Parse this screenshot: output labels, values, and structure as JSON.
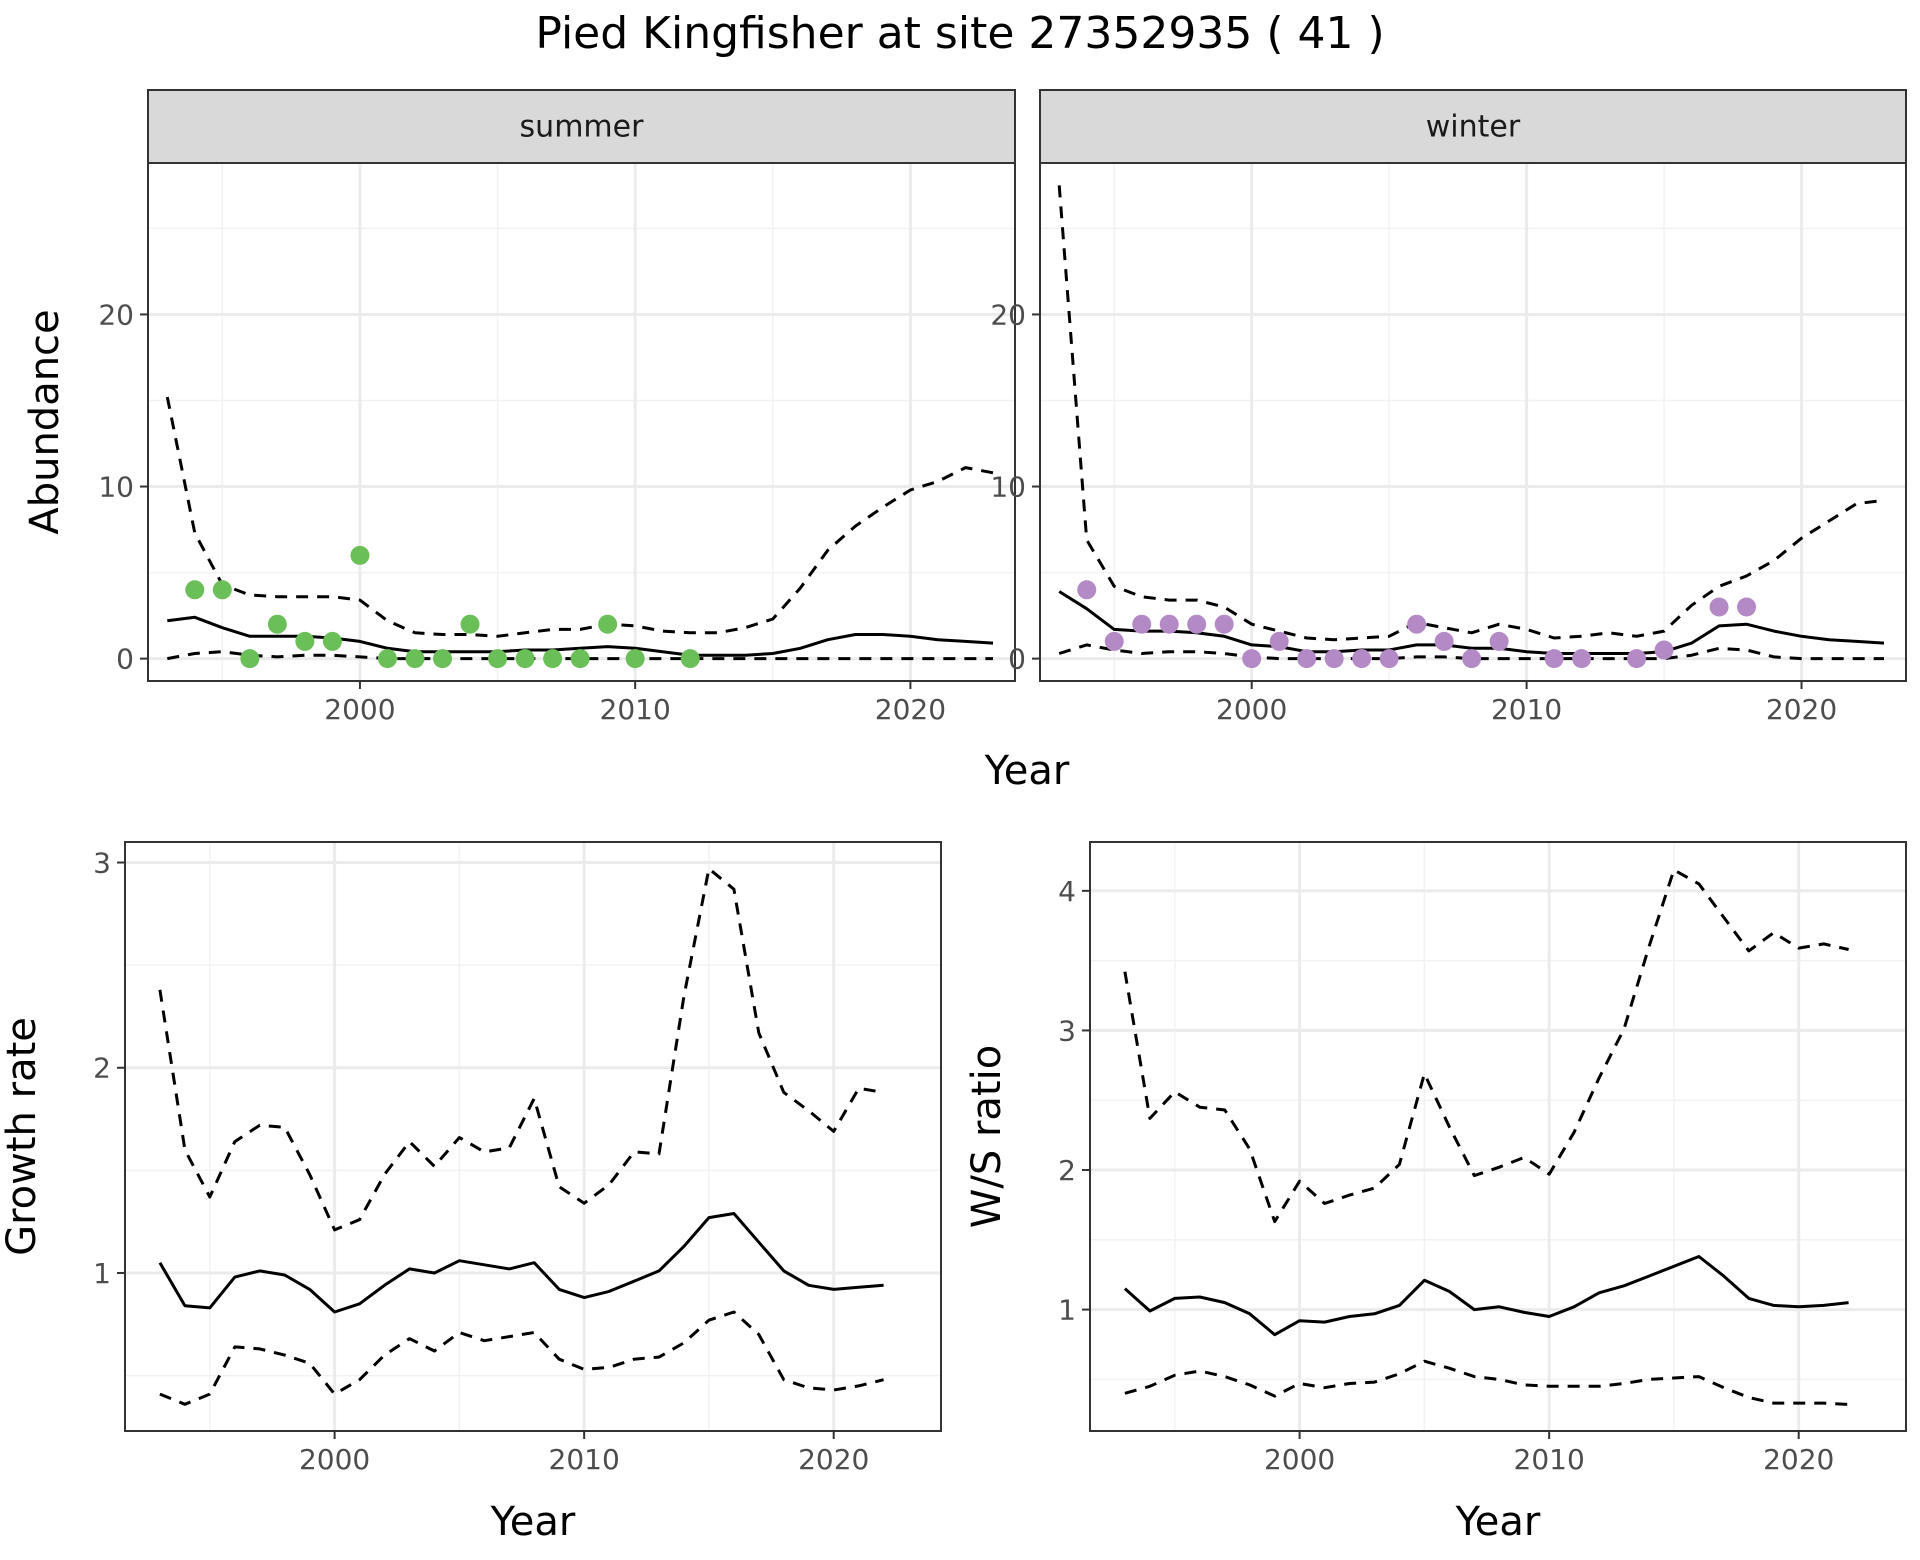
{
  "title": "Pied Kingfisher at site 27352935 ( 41 )",
  "colors": {
    "summer_points": "#6BBF59",
    "winter_points": "#B48AC6",
    "lines": "#000000",
    "grid_major": "#EBEBEB",
    "grid_minor": "#F2F2F2",
    "strip_fill": "#D9D9D9"
  },
  "chart_data": [
    {
      "type": "line",
      "panel": "summer",
      "strip_label": "summer",
      "xlabel": "Year",
      "ylabel": "Abundance",
      "xlim": [
        1992.3,
        2023.8
      ],
      "ylim": [
        -1.3,
        28.8
      ],
      "xticks": [
        2000,
        2010,
        2020
      ],
      "yticks": [
        0,
        10,
        20
      ],
      "grid": true,
      "series": [
        {
          "style": "solid",
          "x": [
            1993,
            1994,
            1995,
            1996,
            1997,
            1998,
            1999,
            2000,
            2001,
            2002,
            2003,
            2004,
            2005,
            2006,
            2007,
            2008,
            2009,
            2010,
            2011,
            2012,
            2013,
            2014,
            2015,
            2016,
            2017,
            2018,
            2019,
            2020,
            2021,
            2022,
            2023
          ],
          "y": [
            2.2,
            2.4,
            1.8,
            1.3,
            1.3,
            1.3,
            1.2,
            1.0,
            0.6,
            0.4,
            0.4,
            0.4,
            0.4,
            0.5,
            0.5,
            0.6,
            0.7,
            0.6,
            0.4,
            0.2,
            0.2,
            0.2,
            0.3,
            0.6,
            1.1,
            1.4,
            1.4,
            1.3,
            1.1,
            1.0,
            0.9
          ]
        },
        {
          "style": "dashed",
          "x": [
            1993,
            1994,
            1995,
            1996,
            1997,
            1998,
            1999,
            2000,
            2001,
            2002,
            2003,
            2004,
            2005,
            2006,
            2007,
            2008,
            2009,
            2010,
            2011,
            2012,
            2013,
            2014,
            2015,
            2016,
            2017,
            2018,
            2019,
            2020,
            2021,
            2022,
            2023
          ],
          "y": [
            15.2,
            7.3,
            4.3,
            3.7,
            3.6,
            3.6,
            3.6,
            3.4,
            2.2,
            1.5,
            1.4,
            1.4,
            1.3,
            1.5,
            1.7,
            1.7,
            2.0,
            1.9,
            1.6,
            1.5,
            1.5,
            1.8,
            2.3,
            4.1,
            6.3,
            7.7,
            8.8,
            9.8,
            10.3,
            11.1,
            10.8
          ]
        },
        {
          "style": "dashed",
          "x": [
            1993,
            1994,
            1995,
            1996,
            1997,
            1998,
            1999,
            2000,
            2001,
            2002,
            2003,
            2004,
            2005,
            2006,
            2007,
            2008,
            2009,
            2010,
            2011,
            2012,
            2013,
            2014,
            2015,
            2016,
            2017,
            2018,
            2019,
            2020,
            2021,
            2022,
            2023
          ],
          "y": [
            0.0,
            0.3,
            0.4,
            0.2,
            0.1,
            0.2,
            0.2,
            0.1,
            0.0,
            0.0,
            0.0,
            0.0,
            0.0,
            0.0,
            0.0,
            0.0,
            0.0,
            0.0,
            0.0,
            0.0,
            0.0,
            0.0,
            0.0,
            0.0,
            0.0,
            0.0,
            0.0,
            0.0,
            0.0,
            0.0,
            0.0
          ]
        }
      ],
      "points": {
        "x": [
          1994,
          1995,
          1996,
          1997,
          1998,
          1999,
          2000,
          2001,
          2002,
          2003,
          2004,
          2005,
          2006,
          2007,
          2008,
          2009,
          2010,
          2012
        ],
        "y": [
          4,
          4,
          0,
          2,
          1,
          1,
          6,
          0,
          0,
          0,
          2,
          0,
          0,
          0,
          0,
          2,
          0,
          0
        ]
      }
    },
    {
      "type": "line",
      "panel": "winter",
      "strip_label": "winter",
      "xlabel": "Year",
      "ylabel": "",
      "xlim": [
        1992.3,
        2023.8
      ],
      "ylim": [
        -1.3,
        28.8
      ],
      "xticks": [
        2000,
        2010,
        2020
      ],
      "yticks": [
        0,
        10,
        20
      ],
      "grid": true,
      "series": [
        {
          "style": "solid",
          "x": [
            1993,
            1994,
            1995,
            1996,
            1997,
            1998,
            1999,
            2000,
            2001,
            2002,
            2003,
            2004,
            2005,
            2006,
            2007,
            2008,
            2009,
            2010,
            2011,
            2012,
            2013,
            2014,
            2015,
            2016,
            2017,
            2018,
            2019,
            2020,
            2021,
            2022,
            2023
          ],
          "y": [
            3.9,
            2.9,
            1.7,
            1.6,
            1.6,
            1.5,
            1.3,
            0.8,
            0.7,
            0.4,
            0.4,
            0.5,
            0.5,
            0.8,
            0.8,
            0.6,
            0.6,
            0.4,
            0.3,
            0.3,
            0.3,
            0.3,
            0.4,
            0.9,
            1.9,
            2.0,
            1.6,
            1.3,
            1.1,
            1.0,
            0.9
          ]
        },
        {
          "style": "dashed",
          "x": [
            1993,
            1994,
            1995,
            1996,
            1997,
            1998,
            1999,
            2000,
            2001,
            2002,
            2003,
            2004,
            2005,
            2006,
            2007,
            2008,
            2009,
            2010,
            2011,
            2012,
            2013,
            2014,
            2015,
            2016,
            2017,
            2018,
            2019,
            2020,
            2021,
            2022,
            2023
          ],
          "y": [
            27.5,
            6.9,
            4.2,
            3.6,
            3.4,
            3.4,
            3.0,
            2.0,
            1.6,
            1.2,
            1.1,
            1.2,
            1.3,
            2.1,
            1.8,
            1.5,
            2.0,
            1.7,
            1.2,
            1.3,
            1.5,
            1.3,
            1.6,
            3.1,
            4.2,
            4.8,
            5.7,
            7.0,
            8.0,
            9.0,
            9.2
          ]
        },
        {
          "style": "dashed",
          "x": [
            1993,
            1994,
            1995,
            1996,
            1997,
            1998,
            1999,
            2000,
            2001,
            2002,
            2003,
            2004,
            2005,
            2006,
            2007,
            2008,
            2009,
            2010,
            2011,
            2012,
            2013,
            2014,
            2015,
            2016,
            2017,
            2018,
            2019,
            2020,
            2021,
            2022,
            2023
          ],
          "y": [
            0.3,
            0.8,
            0.5,
            0.3,
            0.4,
            0.4,
            0.3,
            0.1,
            0.0,
            0.0,
            0.0,
            0.0,
            0.0,
            0.1,
            0.1,
            0.0,
            0.0,
            0.0,
            0.0,
            0.0,
            0.0,
            0.0,
            0.0,
            0.2,
            0.6,
            0.5,
            0.1,
            0.0,
            0.0,
            0.0,
            0.0
          ]
        }
      ],
      "points": {
        "x": [
          1994,
          1995,
          1996,
          1997,
          1998,
          1999,
          2000,
          2001,
          2002,
          2003,
          2004,
          2005,
          2006,
          2007,
          2008,
          2009,
          2011,
          2012,
          2014,
          2015,
          2017,
          2018
        ],
        "y": [
          4,
          1,
          2,
          2,
          2,
          2,
          0,
          1,
          0,
          0,
          0,
          0,
          2,
          1,
          0,
          1,
          0,
          0,
          0,
          0.5,
          3,
          3
        ]
      }
    },
    {
      "type": "line",
      "panel": "growth",
      "xlabel": "Year",
      "ylabel": "Growth rate",
      "xlim": [
        1991.6,
        2024.3
      ],
      "ylim": [
        0.23,
        3.1
      ],
      "xticks": [
        2000,
        2010,
        2020
      ],
      "yticks": [
        1,
        2,
        3
      ],
      "grid": true,
      "series": [
        {
          "style": "solid",
          "x": [
            1993,
            1994,
            1995,
            1996,
            1997,
            1998,
            1999,
            2000,
            2001,
            2002,
            2003,
            2004,
            2005,
            2006,
            2007,
            2008,
            2009,
            2010,
            2011,
            2012,
            2013,
            2014,
            2015,
            2016,
            2017,
            2018,
            2019,
            2020,
            2021,
            2022
          ],
          "y": [
            1.05,
            0.84,
            0.83,
            0.98,
            1.01,
            0.99,
            0.92,
            0.81,
            0.85,
            0.94,
            1.02,
            1.0,
            1.06,
            1.04,
            1.02,
            1.05,
            0.92,
            0.88,
            0.91,
            0.96,
            1.01,
            1.13,
            1.27,
            1.29,
            1.15,
            1.01,
            0.94,
            0.92,
            0.93,
            0.94
          ]
        },
        {
          "style": "dashed",
          "x": [
            1993,
            1994,
            1995,
            1996,
            1997,
            1998,
            1999,
            2000,
            2001,
            2002,
            2003,
            2004,
            2005,
            2006,
            2007,
            2008,
            2009,
            2010,
            2011,
            2012,
            2013,
            2014,
            2015,
            2016,
            2017,
            2018,
            2019,
            2020,
            2021,
            2022
          ],
          "y": [
            2.38,
            1.6,
            1.37,
            1.64,
            1.72,
            1.71,
            1.48,
            1.21,
            1.26,
            1.48,
            1.64,
            1.52,
            1.66,
            1.59,
            1.61,
            1.85,
            1.42,
            1.34,
            1.43,
            1.59,
            1.58,
            2.35,
            2.97,
            2.87,
            2.17,
            1.88,
            1.79,
            1.69,
            1.9,
            1.88
          ]
        },
        {
          "style": "dashed",
          "x": [
            1993,
            1994,
            1995,
            1996,
            1997,
            1998,
            1999,
            2000,
            2001,
            2002,
            2003,
            2004,
            2005,
            2006,
            2007,
            2008,
            2009,
            2010,
            2011,
            2012,
            2013,
            2014,
            2015,
            2016,
            2017,
            2018,
            2019,
            2020,
            2021,
            2022
          ],
          "y": [
            0.41,
            0.36,
            0.41,
            0.64,
            0.63,
            0.6,
            0.56,
            0.41,
            0.48,
            0.6,
            0.68,
            0.62,
            0.71,
            0.67,
            0.69,
            0.71,
            0.58,
            0.53,
            0.54,
            0.58,
            0.59,
            0.66,
            0.77,
            0.81,
            0.7,
            0.48,
            0.44,
            0.43,
            0.45,
            0.48
          ]
        }
      ]
    },
    {
      "type": "line",
      "panel": "ws_ratio",
      "xlabel": "Year",
      "ylabel": "W/S ratio",
      "xlim": [
        1991.6,
        2024.3
      ],
      "ylim": [
        0.13,
        4.35
      ],
      "xticks": [
        2000,
        2010,
        2020
      ],
      "yticks": [
        1,
        2,
        3,
        4
      ],
      "grid": true,
      "series": [
        {
          "style": "solid",
          "x": [
            1993,
            1994,
            1995,
            1996,
            1997,
            1998,
            1999,
            2000,
            2001,
            2002,
            2003,
            2004,
            2005,
            2006,
            2007,
            2008,
            2009,
            2010,
            2011,
            2012,
            2013,
            2014,
            2015,
            2016,
            2017,
            2018,
            2019,
            2020,
            2021,
            2022
          ],
          "y": [
            1.15,
            0.99,
            1.08,
            1.09,
            1.05,
            0.97,
            0.82,
            0.92,
            0.91,
            0.95,
            0.97,
            1.03,
            1.21,
            1.13,
            1.0,
            1.02,
            0.98,
            0.95,
            1.02,
            1.12,
            1.17,
            1.24,
            1.31,
            1.38,
            1.24,
            1.08,
            1.03,
            1.02,
            1.03,
            1.05
          ]
        },
        {
          "style": "dashed",
          "x": [
            1993,
            1994,
            1995,
            1996,
            1997,
            1998,
            1999,
            2000,
            2001,
            2002,
            2003,
            2004,
            2005,
            2006,
            2007,
            2008,
            2009,
            2010,
            2011,
            2012,
            2013,
            2014,
            2015,
            2016,
            2017,
            2018,
            2019,
            2020,
            2021,
            2022
          ],
          "y": [
            3.42,
            2.37,
            2.56,
            2.45,
            2.43,
            2.15,
            1.63,
            1.92,
            1.76,
            1.82,
            1.87,
            2.04,
            2.69,
            2.31,
            1.96,
            2.02,
            2.09,
            1.97,
            2.27,
            2.66,
            3.01,
            3.6,
            4.15,
            4.05,
            3.81,
            3.57,
            3.7,
            3.59,
            3.62,
            3.58
          ]
        },
        {
          "style": "dashed",
          "x": [
            1993,
            1994,
            1995,
            1996,
            1997,
            1998,
            1999,
            2000,
            2001,
            2002,
            2003,
            2004,
            2005,
            2006,
            2007,
            2008,
            2009,
            2010,
            2011,
            2012,
            2013,
            2014,
            2015,
            2016,
            2017,
            2018,
            2019,
            2020,
            2021,
            2022
          ],
          "y": [
            0.4,
            0.45,
            0.53,
            0.56,
            0.52,
            0.46,
            0.38,
            0.47,
            0.44,
            0.47,
            0.48,
            0.54,
            0.63,
            0.58,
            0.52,
            0.5,
            0.46,
            0.45,
            0.45,
            0.45,
            0.47,
            0.5,
            0.51,
            0.52,
            0.44,
            0.37,
            0.33,
            0.33,
            0.33,
            0.32
          ]
        }
      ]
    }
  ]
}
